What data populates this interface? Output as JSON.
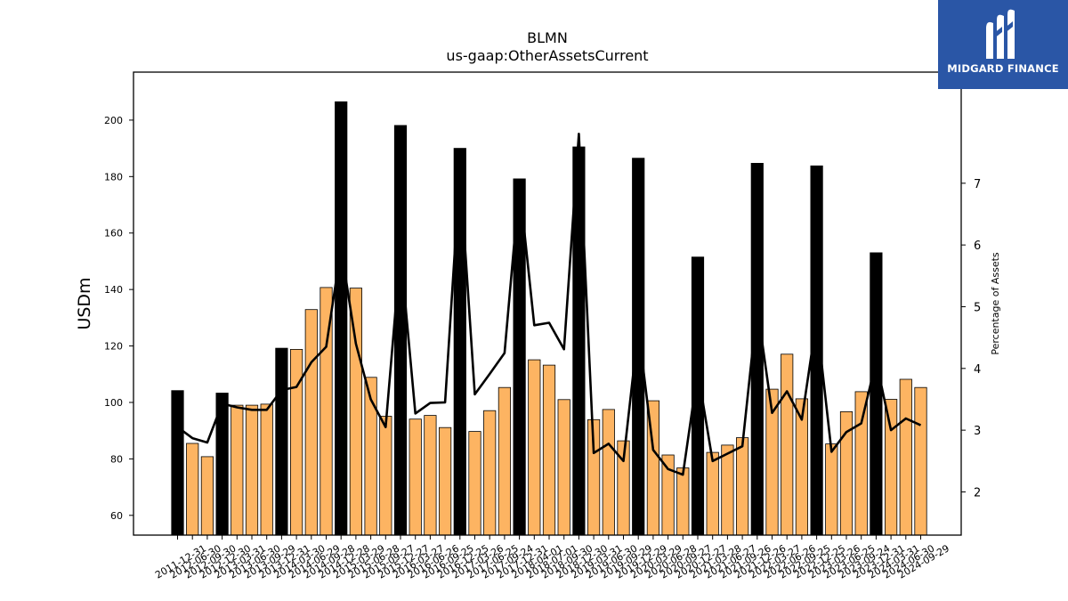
{
  "chart_data": {
    "type": "bar",
    "title": "BLMN",
    "subtitle": "us-gaap:OtherAssetsCurrent",
    "ylabel": "USDm",
    "y2label": "Percentage of Assets",
    "ylim": [
      53,
      217
    ],
    "y2lim": [
      1.3,
      8.8
    ],
    "yticks": [
      60,
      80,
      100,
      120,
      140,
      160,
      180,
      200
    ],
    "y2ticks": [
      2,
      3,
      4,
      5,
      6,
      7
    ],
    "colors": {
      "bar_q4": "#000000",
      "bar_other": "#fdb462",
      "line": "#000000"
    },
    "categories": [
      "2011-12-31",
      "2012-06-30",
      "2012-09-30",
      "2012-12-30",
      "2013-03-31",
      "2013-06-30",
      "2013-09-29",
      "2013-12-31",
      "2014-03-30",
      "2014-06-29",
      "2014-09-28",
      "2014-12-28",
      "2015-03-29",
      "2015-06-28",
      "2015-09-27",
      "2015-12-27",
      "2016-03-27",
      "2016-06-26",
      "2016-09-25",
      "2016-12-25",
      "2017-03-26",
      "2017-06-25",
      "2017-09-24",
      "2017-12-31",
      "2018-04-01",
      "2018-07-01",
      "2018-09-30",
      "2018-12-30",
      "2019-03-31",
      "2019-06-30",
      "2019-09-29",
      "2019-12-29",
      "2020-03-29",
      "2020-06-28",
      "2020-09-27",
      "2020-12-27",
      "2021-03-28",
      "2021-06-27",
      "2021-09-26",
      "2021-12-26",
      "2022-03-27",
      "2022-06-26",
      "2022-09-25",
      "2022-12-25",
      "2023-03-26",
      "2023-06-25",
      "2023-09-24",
      "2023-12-31",
      "2024-03-31",
      "2024-06-30",
      "2024-09-29"
    ],
    "series": [
      {
        "name": "",
        "values": [
          104.2,
          85.5,
          80.8,
          103.3,
          99.0,
          99.0,
          99.4,
          119.2,
          118.8,
          132.9,
          140.7,
          206.5,
          140.5,
          108.9,
          95.1,
          198.1,
          94.1,
          95.4,
          91.1,
          190.0,
          89.7,
          97.1,
          105.3,
          179.2,
          115.1,
          113.2,
          101.0,
          190.5,
          93.9,
          97.5,
          86.4,
          186.5,
          100.6,
          81.4,
          76.8,
          151.5,
          82.3,
          84.9,
          87.5,
          184.7,
          104.7,
          117.1,
          101.3,
          183.8,
          85.3,
          96.7,
          103.8,
          153.0,
          101.1,
          108.2,
          105.3
        ]
      },
      {
        "name": "",
        "axis": "right",
        "values": [
          3.05,
          2.87,
          2.8,
          3.43,
          3.37,
          3.33,
          3.33,
          3.65,
          3.7,
          4.1,
          4.35,
          5.95,
          4.4,
          3.5,
          3.05,
          5.9,
          3.27,
          3.44,
          3.45,
          7.2,
          3.58,
          3.91,
          4.25,
          6.98,
          4.7,
          4.74,
          4.31,
          7.8,
          2.63,
          2.78,
          2.5,
          4.65,
          2.68,
          2.37,
          2.28,
          3.95,
          2.5,
          2.62,
          2.74,
          5.0,
          3.28,
          3.63,
          3.17,
          4.8,
          2.65,
          2.97,
          3.11,
          4.12,
          3.0,
          3.19,
          3.08
        ]
      }
    ]
  },
  "logo": {
    "text": "MIDGARD FINANCE"
  }
}
